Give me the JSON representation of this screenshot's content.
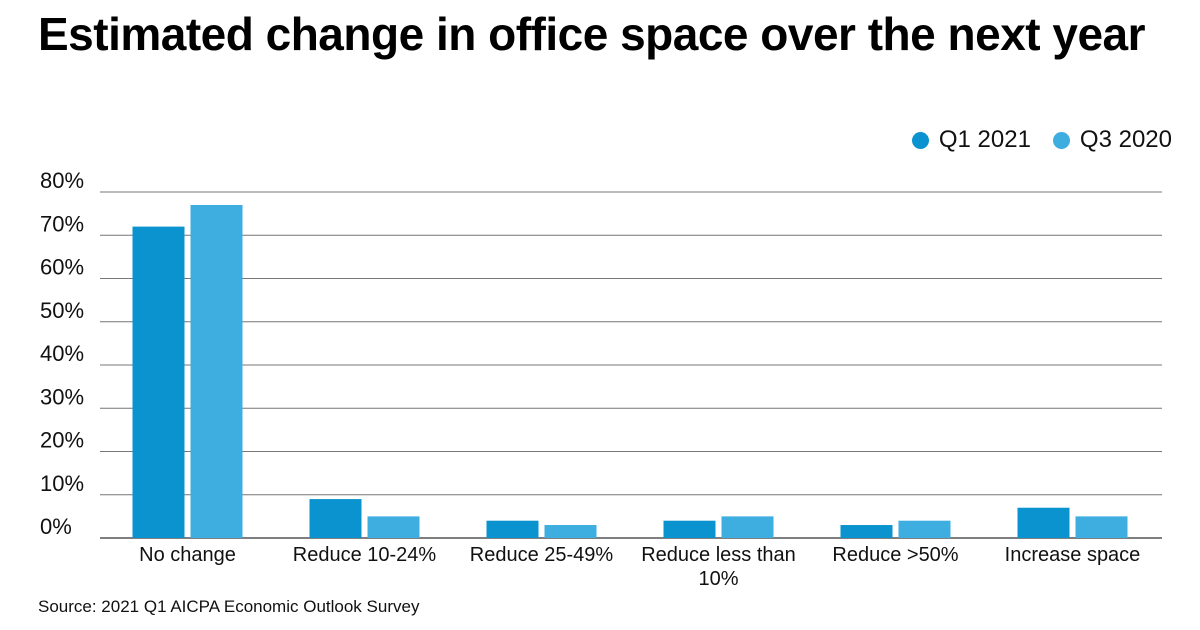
{
  "chart_data": {
    "type": "bar",
    "title": "Estimated change in office space over the next year",
    "categories": [
      [
        "No change"
      ],
      [
        "Reduce 10-24%"
      ],
      [
        "Reduce 25-49%"
      ],
      [
        "Reduce less than",
        "10%"
      ],
      [
        "Reduce >50%"
      ],
      [
        "Increase space"
      ]
    ],
    "series": [
      {
        "name": "Q1 2021",
        "color": "#0b93cf",
        "values": [
          72,
          9,
          4,
          4,
          3,
          7
        ]
      },
      {
        "name": "Q3 2020",
        "color": "#3eaee0",
        "values": [
          77,
          5,
          3,
          5,
          4,
          5
        ]
      }
    ],
    "y_ticks": [
      "0%",
      "10%",
      "20%",
      "30%",
      "40%",
      "50%",
      "60%",
      "70%",
      "80%"
    ],
    "ylim": [
      0,
      80
    ],
    "grid": true,
    "legend_position": "top-right",
    "source": "Source: 2021 Q1 AICPA Economic Outlook Survey"
  }
}
